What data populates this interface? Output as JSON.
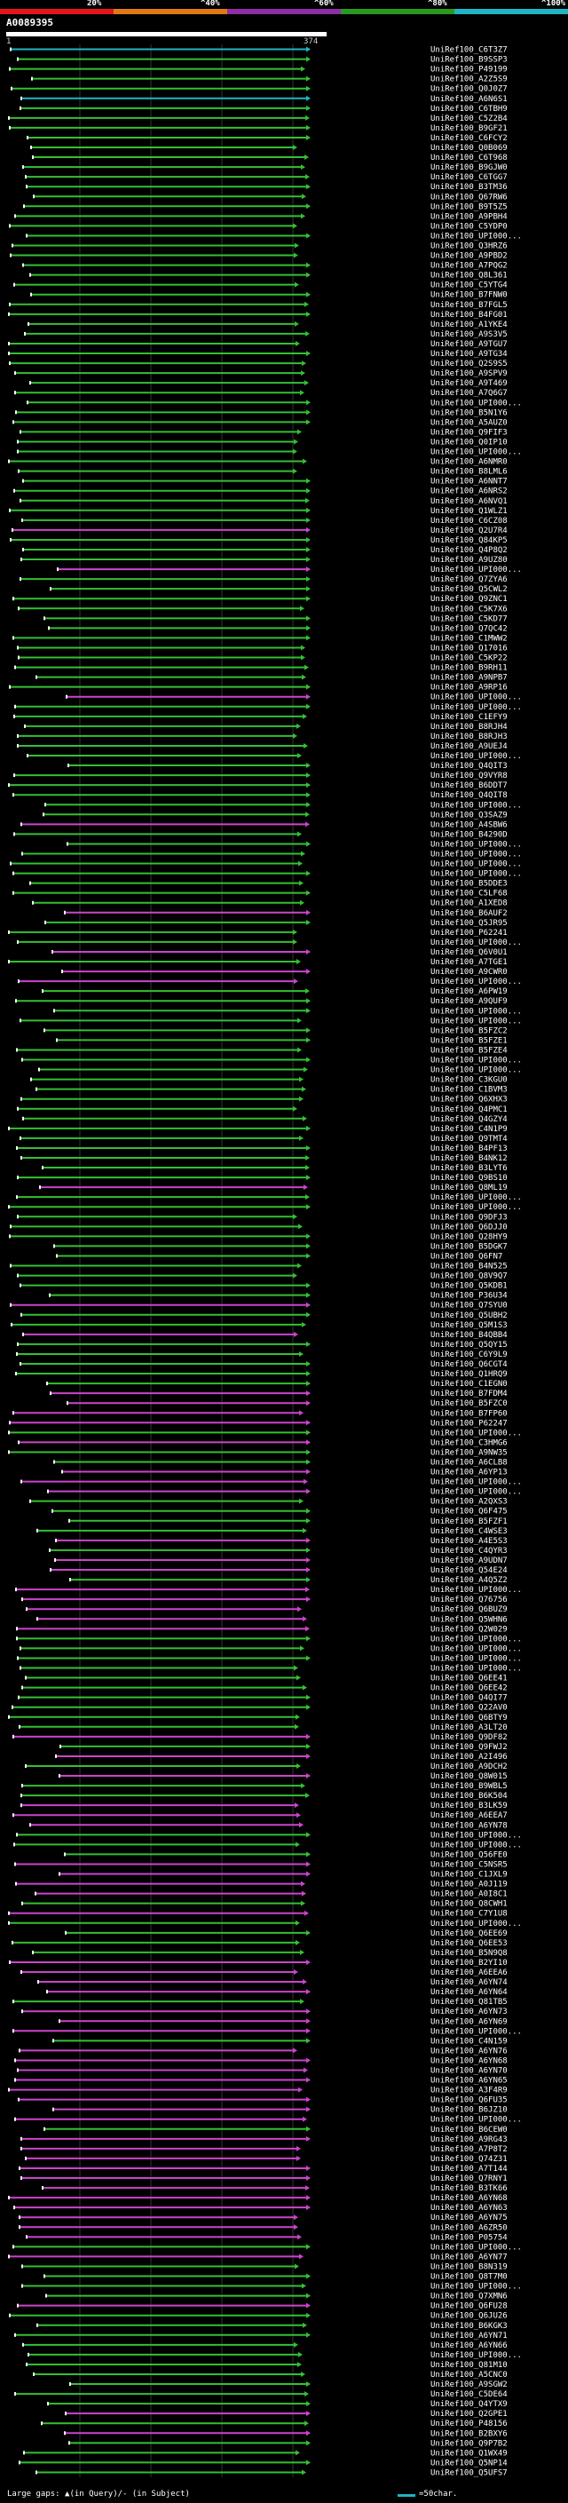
{
  "legend": {
    "segments": [
      {
        "label": "20%",
        "color": "#e8141d"
      },
      {
        "label": "^40%",
        "color": "#e07b14"
      },
      {
        "label": "^60%",
        "color": "#8e2fa6"
      },
      {
        "label": "^80%",
        "color": "#2a9a1e"
      },
      {
        "label": "^100%",
        "color": "#1fb5c4"
      }
    ]
  },
  "query": {
    "id": "A0089395",
    "start": "1",
    "end": "374"
  },
  "colors": {
    "green": "#33c033",
    "magenta": "#cc44cc",
    "cyan": "#1fb5c4",
    "frame": "#ffffff"
  },
  "hits": [
    {
      "label": "UniRef100_C6T3Z7",
      "color": "cyan"
    },
    {
      "label": "UniRef100_B9SSP3",
      "color": "green"
    },
    {
      "label": "UniRef100_P49199",
      "color": "green"
    },
    {
      "label": "UniRef100_A2Z5S9",
      "color": "green"
    },
    {
      "label": "UniRef100_Q0J0Z7",
      "color": "green"
    },
    {
      "label": "UniRef100_A6N6S1",
      "color": "cyan"
    },
    {
      "label": "UniRef100_C6TBH9",
      "color": "green"
    },
    {
      "label": "UniRef100_C5Z2B4",
      "color": "green"
    },
    {
      "label": "UniRef100_B9GF21",
      "color": "green"
    },
    {
      "label": "UniRef100_C6FCY2",
      "color": "green"
    },
    {
      "label": "UniRef100_Q0B069",
      "color": "green"
    },
    {
      "label": "UniRef100_C6T968",
      "color": "green"
    },
    {
      "label": "UniRef100_B9GJW0",
      "color": "green"
    },
    {
      "label": "UniRef100_C6TGG7",
      "color": "green"
    },
    {
      "label": "UniRef100_B3TM36",
      "color": "green"
    },
    {
      "label": "UniRef100_Q67RW6",
      "color": "green"
    },
    {
      "label": "UniRef100_B9T5Z5",
      "color": "green"
    },
    {
      "label": "UniRef100_A9PBH4",
      "color": "green"
    },
    {
      "label": "UniRef100_C5YDP0",
      "color": "green"
    },
    {
      "label": "UniRef100_UPI000...",
      "color": "green"
    },
    {
      "label": "UniRef100_Q3HRZ6",
      "color": "green"
    },
    {
      "label": "UniRef100_A9PBD2",
      "color": "green"
    },
    {
      "label": "UniRef100_A7PQG2",
      "color": "green"
    },
    {
      "label": "UniRef100_Q8L361",
      "color": "green"
    },
    {
      "label": "UniRef100_C5YTG4",
      "color": "green"
    },
    {
      "label": "UniRef100_B7FNW0",
      "color": "green"
    },
    {
      "label": "UniRef100_B7FGL5",
      "color": "green"
    },
    {
      "label": "UniRef100_B4FG01",
      "color": "green"
    },
    {
      "label": "UniRef100_A1YKE4",
      "color": "green"
    },
    {
      "label": "UniRef100_A9S3V5",
      "color": "green"
    },
    {
      "label": "UniRef100_A9TGU7",
      "color": "green"
    },
    {
      "label": "UniRef100_A9TG34",
      "color": "green"
    },
    {
      "label": "UniRef100_Q2S9S5",
      "color": "green"
    },
    {
      "label": "UniRef100_A9SPV9",
      "color": "green"
    },
    {
      "label": "UniRef100_A9T469",
      "color": "green"
    },
    {
      "label": "UniRef100_A7Q6G7",
      "color": "green"
    },
    {
      "label": "UniRef100_UPI000...",
      "color": "green"
    },
    {
      "label": "UniRef100_B5N1Y6",
      "color": "green"
    },
    {
      "label": "UniRef100_A5AUZ0",
      "color": "green"
    },
    {
      "label": "UniRef100_Q9FIF3",
      "color": "green"
    },
    {
      "label": "UniRef100_Q0IP10",
      "color": "green"
    },
    {
      "label": "UniRef100_UPI000...",
      "color": "green"
    },
    {
      "label": "UniRef100_A6NMR0",
      "color": "green"
    },
    {
      "label": "UniRef100_B8LML6",
      "color": "green"
    },
    {
      "label": "UniRef100_A6NNT7",
      "color": "green"
    },
    {
      "label": "UniRef100_A6NRS2",
      "color": "green"
    },
    {
      "label": "UniRef100_A6NVQ1",
      "color": "green"
    },
    {
      "label": "UniRef100_Q1WLZ1",
      "color": "green"
    },
    {
      "label": "UniRef100_C6CZ08",
      "color": "green"
    },
    {
      "label": "UniRef100_Q2U7R4",
      "color": "magenta"
    },
    {
      "label": "UniRef100_Q84KP5",
      "color": "green"
    },
    {
      "label": "UniRef100_Q4P8Q2",
      "color": "green"
    },
    {
      "label": "UniRef100_A9UZ80",
      "color": "green"
    },
    {
      "label": "UniRef100_UPI000...",
      "color": "magenta"
    },
    {
      "label": "UniRef100_Q7ZYA6",
      "color": "green"
    },
    {
      "label": "UniRef100_Q5CWL2",
      "color": "green"
    },
    {
      "label": "UniRef100_Q9ZNC1",
      "color": "green"
    },
    {
      "label": "UniRef100_C5K7X6",
      "color": "green"
    },
    {
      "label": "UniRef100_C5KD77",
      "color": "green"
    },
    {
      "label": "UniRef100_Q7QC42",
      "color": "green"
    },
    {
      "label": "UniRef100_C1MWW2",
      "color": "green"
    },
    {
      "label": "UniRef100_Q17016",
      "color": "green"
    },
    {
      "label": "UniRef100_C5KP22",
      "color": "green"
    },
    {
      "label": "UniRef100_B9RH11",
      "color": "green"
    },
    {
      "label": "UniRef100_A9NPB7",
      "color": "green"
    },
    {
      "label": "UniRef100_A9RP16",
      "color": "green"
    },
    {
      "label": "UniRef100_UPI000...",
      "color": "magenta"
    },
    {
      "label": "UniRef100_UPI000...",
      "color": "green"
    },
    {
      "label": "UniRef100_C1EFY9",
      "color": "green"
    },
    {
      "label": "UniRef100_B8RJH4",
      "color": "green"
    },
    {
      "label": "UniRef100_B8RJH3",
      "color": "green"
    },
    {
      "label": "UniRef100_A9UEJ4",
      "color": "green"
    },
    {
      "label": "UniRef100_UPI000...",
      "color": "green"
    },
    {
      "label": "UniRef100_Q4QIT3",
      "color": "green"
    },
    {
      "label": "UniRef100_Q9VYR8",
      "color": "green"
    },
    {
      "label": "UniRef100_B6DDT7",
      "color": "green"
    },
    {
      "label": "UniRef100_Q4QIT8",
      "color": "green"
    },
    {
      "label": "UniRef100_UPI000...",
      "color": "green"
    },
    {
      "label": "UniRef100_Q3SAZ9",
      "color": "green"
    },
    {
      "label": "UniRef100_A4SBW6",
      "color": "magenta"
    },
    {
      "label": "UniRef100_B4290D",
      "color": "green"
    },
    {
      "label": "UniRef100_UPI000...",
      "color": "green"
    },
    {
      "label": "UniRef100_UPI000...",
      "color": "green"
    },
    {
      "label": "UniRef100_UPI000...",
      "color": "green"
    },
    {
      "label": "UniRef100_UPI000...",
      "color": "green"
    },
    {
      "label": "UniRef100_B5DDE3",
      "color": "green"
    },
    {
      "label": "UniRef100_C5LF68",
      "color": "green"
    },
    {
      "label": "UniRef100_A1XED8",
      "color": "green"
    },
    {
      "label": "UniRef100_B6AUF2",
      "color": "magenta"
    },
    {
      "label": "UniRef100_Q5JR95",
      "color": "green"
    },
    {
      "label": "UniRef100_P62241",
      "color": "green"
    },
    {
      "label": "UniRef100_UPI000...",
      "color": "green"
    },
    {
      "label": "UniRef100_Q6V0U1",
      "color": "magenta"
    },
    {
      "label": "UniRef100_A7TGE1",
      "color": "green"
    },
    {
      "label": "UniRef100_A9CWR0",
      "color": "magenta"
    },
    {
      "label": "UniRef100_UPI000...",
      "color": "magenta"
    },
    {
      "label": "UniRef100_A6PW19",
      "color": "green"
    },
    {
      "label": "UniRef100_A9QUF9",
      "color": "green"
    },
    {
      "label": "UniRef100_UPI000...",
      "color": "green"
    },
    {
      "label": "UniRef100_UPI000...",
      "color": "green"
    },
    {
      "label": "UniRef100_B5FZC2",
      "color": "green"
    },
    {
      "label": "UniRef100_B5FZE1",
      "color": "green"
    },
    {
      "label": "UniRef100_B5FZE4",
      "color": "green"
    },
    {
      "label": "UniRef100_UPI000...",
      "color": "green"
    },
    {
      "label": "UniRef100_UPI000...",
      "color": "green"
    },
    {
      "label": "UniRef100_C3KGU0",
      "color": "green"
    },
    {
      "label": "UniRef100_C1BVM3",
      "color": "green"
    },
    {
      "label": "UniRef100_Q6XHX3",
      "color": "green"
    },
    {
      "label": "UniRef100_Q4PMC1",
      "color": "green"
    },
    {
      "label": "UniRef100_Q4GZY4",
      "color": "green"
    },
    {
      "label": "UniRef100_C4N1P9",
      "color": "green"
    },
    {
      "label": "UniRef100_Q9TMT4",
      "color": "green"
    },
    {
      "label": "UniRef100_B4PF13",
      "color": "green"
    },
    {
      "label": "UniRef100_B4NK12",
      "color": "green"
    },
    {
      "label": "UniRef100_B3LYT6",
      "color": "green"
    },
    {
      "label": "UniRef100_Q9BS10",
      "color": "green"
    },
    {
      "label": "UniRef100_Q8ML19",
      "color": "magenta"
    },
    {
      "label": "UniRef100_UPI000...",
      "color": "green"
    },
    {
      "label": "UniRef100_UPI000...",
      "color": "green"
    },
    {
      "label": "UniRef100_Q9DFJ3",
      "color": "green"
    },
    {
      "label": "UniRef100_Q6DJJ0",
      "color": "green"
    },
    {
      "label": "UniRef100_Q28HY9",
      "color": "green"
    },
    {
      "label": "UniRef100_B5DGK7",
      "color": "green"
    },
    {
      "label": "UniRef100_Q6FN7",
      "color": "green"
    },
    {
      "label": "UniRef100_B4N525",
      "color": "green"
    },
    {
      "label": "UniRef100_Q8V9Q7",
      "color": "green"
    },
    {
      "label": "UniRef100_Q5KDB1",
      "color": "green"
    },
    {
      "label": "UniRef100_P36U34",
      "color": "green"
    },
    {
      "label": "UniRef100_Q7SYU0",
      "color": "magenta"
    },
    {
      "label": "UniRef100_Q5UBH2",
      "color": "green"
    },
    {
      "label": "UniRef100_Q5M1S3",
      "color": "green"
    },
    {
      "label": "UniRef100_B4QBB4",
      "color": "magenta"
    },
    {
      "label": "UniRef100_Q5QY15",
      "color": "green"
    },
    {
      "label": "UniRef100_C6Y9L9",
      "color": "green"
    },
    {
      "label": "UniRef100_Q6CGT4",
      "color": "green"
    },
    {
      "label": "UniRef100_Q1HRQ9",
      "color": "green"
    },
    {
      "label": "UniRef100_C1EGN0",
      "color": "green"
    },
    {
      "label": "UniRef100_B7FDM4",
      "color": "magenta"
    },
    {
      "label": "UniRef100_B5FZC0",
      "color": "magenta"
    },
    {
      "label": "UniRef100_B7FP60",
      "color": "magenta"
    },
    {
      "label": "UniRef100_P62247",
      "color": "magenta"
    },
    {
      "label": "UniRef100_UPI000...",
      "color": "green"
    },
    {
      "label": "UniRef100_C3HMG6",
      "color": "magenta"
    },
    {
      "label": "UniRef100_A9NW35",
      "color": "green"
    },
    {
      "label": "UniRef100_A6CLB8",
      "color": "green"
    },
    {
      "label": "UniRef100_A6YP13",
      "color": "magenta"
    },
    {
      "label": "UniRef100_UPI000...",
      "color": "magenta"
    },
    {
      "label": "UniRef100_UPI000...",
      "color": "magenta"
    },
    {
      "label": "UniRef100_A2QXS3",
      "color": "green"
    },
    {
      "label": "UniRef100_Q6F475",
      "color": "green"
    },
    {
      "label": "UniRef100_B5FZF1",
      "color": "green"
    },
    {
      "label": "UniRef100_C4WSE3",
      "color": "green"
    },
    {
      "label": "UniRef100_A4E5S3",
      "color": "magenta"
    },
    {
      "label": "UniRef100_C4QYR3",
      "color": "green"
    },
    {
      "label": "UniRef100_A9UDN7",
      "color": "magenta"
    },
    {
      "label": "UniRef100_Q54E24",
      "color": "magenta"
    },
    {
      "label": "UniRef100_A4Q5Z2",
      "color": "green"
    },
    {
      "label": "UniRef100_UPI000...",
      "color": "magenta"
    },
    {
      "label": "UniRef100_Q76756",
      "color": "magenta"
    },
    {
      "label": "UniRef100_Q6BUZ9",
      "color": "magenta"
    },
    {
      "label": "UniRef100_Q5WHN6",
      "color": "magenta"
    },
    {
      "label": "UniRef100_Q2W029",
      "color": "magenta"
    },
    {
      "label": "UniRef100_UPI000...",
      "color": "green"
    },
    {
      "label": "UniRef100_UPI000...",
      "color": "green"
    },
    {
      "label": "UniRef100_UPI000...",
      "color": "green"
    },
    {
      "label": "UniRef100_UPI000...",
      "color": "green"
    },
    {
      "label": "UniRef100_Q6EE41",
      "color": "green"
    },
    {
      "label": "UniRef100_Q6EE42",
      "color": "green"
    },
    {
      "label": "UniRef100_Q4QI77",
      "color": "green"
    },
    {
      "label": "UniRef100_Q22AV0",
      "color": "green"
    },
    {
      "label": "UniRef100_Q6BTY9",
      "color": "green"
    },
    {
      "label": "UniRef100_A3LT20",
      "color": "green"
    },
    {
      "label": "UniRef100_Q9DF82",
      "color": "magenta"
    },
    {
      "label": "UniRef100_Q9FWJ2",
      "color": "green"
    },
    {
      "label": "UniRef100_A2I496",
      "color": "magenta"
    },
    {
      "label": "UniRef100_A9DCH2",
      "color": "green"
    },
    {
      "label": "UniRef100_Q8W015",
      "color": "magenta"
    },
    {
      "label": "UniRef100_B9WBL5",
      "color": "green"
    },
    {
      "label": "UniRef100_B6K504",
      "color": "green"
    },
    {
      "label": "UniRef100_B3LK59",
      "color": "magenta"
    },
    {
      "label": "UniRef100_A6EEA7",
      "color": "magenta"
    },
    {
      "label": "UniRef100_A6YN78",
      "color": "magenta"
    },
    {
      "label": "UniRef100_UPI000...",
      "color": "green"
    },
    {
      "label": "UniRef100_UPI000...",
      "color": "green"
    },
    {
      "label": "UniRef100_Q56FE0",
      "color": "green"
    },
    {
      "label": "UniRef100_C5NSR5",
      "color": "magenta"
    },
    {
      "label": "UniRef100_C1JXL9",
      "color": "magenta"
    },
    {
      "label": "UniRef100_A0J119",
      "color": "magenta"
    },
    {
      "label": "UniRef100_A0I8C1",
      "color": "magenta"
    },
    {
      "label": "UniRef100_Q8CWH1",
      "color": "green"
    },
    {
      "label": "UniRef100_C7Y1U8",
      "color": "magenta"
    },
    {
      "label": "UniRef100_UPI000...",
      "color": "green"
    },
    {
      "label": "UniRef100_Q6EE69",
      "color": "green"
    },
    {
      "label": "UniRef100_Q6EE53",
      "color": "green"
    },
    {
      "label": "UniRef100_B5N9Q8",
      "color": "green"
    },
    {
      "label": "UniRef100_B2YI10",
      "color": "magenta"
    },
    {
      "label": "UniRef100_A6EEA6",
      "color": "magenta"
    },
    {
      "label": "UniRef100_A6YN74",
      "color": "magenta"
    },
    {
      "label": "UniRef100_A6YN64",
      "color": "magenta"
    },
    {
      "label": "UniRef100_Q81TB5",
      "color": "green"
    },
    {
      "label": "UniRef100_A6YN73",
      "color": "magenta"
    },
    {
      "label": "UniRef100_A6YN69",
      "color": "magenta"
    },
    {
      "label": "UniRef100_UPI000...",
      "color": "magenta"
    },
    {
      "label": "UniRef100_C4N159",
      "color": "green"
    },
    {
      "label": "UniRef100_A6YN76",
      "color": "magenta"
    },
    {
      "label": "UniRef100_A6YN68",
      "color": "magenta"
    },
    {
      "label": "UniRef100_A6YN70",
      "color": "magenta"
    },
    {
      "label": "UniRef100_A6YN65",
      "color": "magenta"
    },
    {
      "label": "UniRef100_A3F4R9",
      "color": "magenta"
    },
    {
      "label": "UniRef100_Q6FU35",
      "color": "magenta"
    },
    {
      "label": "UniRef100_B6JZ10",
      "color": "magenta"
    },
    {
      "label": "UniRef100_UPI000...",
      "color": "magenta"
    },
    {
      "label": "UniRef100_B6CEW0",
      "color": "green"
    },
    {
      "label": "UniRef100_A9RG43",
      "color": "magenta"
    },
    {
      "label": "UniRef100_A7P8T2",
      "color": "magenta"
    },
    {
      "label": "UniRef100_Q74Z31",
      "color": "magenta"
    },
    {
      "label": "UniRef100_A7T144",
      "color": "magenta"
    },
    {
      "label": "UniRef100_Q7RNY1",
      "color": "magenta"
    },
    {
      "label": "UniRef100_B3TK66",
      "color": "magenta"
    },
    {
      "label": "UniRef100_A6YN68",
      "color": "magenta"
    },
    {
      "label": "UniRef100_A6YN63",
      "color": "magenta"
    },
    {
      "label": "UniRef100_A6YN75",
      "color": "magenta"
    },
    {
      "label": "UniRef100_A6ZR50",
      "color": "magenta"
    },
    {
      "label": "UniRef100_P05754",
      "color": "magenta"
    },
    {
      "label": "UniRef100_UPI000...",
      "color": "green"
    },
    {
      "label": "UniRef100_A6YN77",
      "color": "magenta"
    },
    {
      "label": "UniRef100_B8N319",
      "color": "green"
    },
    {
      "label": "UniRef100_Q8T7M0",
      "color": "green"
    },
    {
      "label": "UniRef100_UPI000...",
      "color": "green"
    },
    {
      "label": "UniRef100_Q7XMN6",
      "color": "green"
    },
    {
      "label": "UniRef100_Q6FU28",
      "color": "magenta"
    },
    {
      "label": "UniRef100_Q6JU26",
      "color": "green"
    },
    {
      "label": "UniRef100_B6KGK3",
      "color": "green"
    },
    {
      "label": "UniRef100_A6YN71",
      "color": "green"
    },
    {
      "label": "UniRef100_A6YN66",
      "color": "green"
    },
    {
      "label": "UniRef100_UPI000...",
      "color": "green"
    },
    {
      "label": "UniRef100_Q81M10",
      "color": "green"
    },
    {
      "label": "UniRef100_A5CNC0",
      "color": "green"
    },
    {
      "label": "UniRef100_A9SGW2",
      "color": "green"
    },
    {
      "label": "UniRef100_C5DE64",
      "color": "green"
    },
    {
      "label": "UniRef100_Q4YTX9",
      "color": "green"
    },
    {
      "label": "UniRef100_Q2GPE1",
      "color": "magenta"
    },
    {
      "label": "UniRef100_P48156",
      "color": "green"
    },
    {
      "label": "UniRef100_B2BXY6",
      "color": "magenta"
    },
    {
      "label": "UniRef100_Q9P7B2",
      "color": "green"
    },
    {
      "label": "UniRef100_Q1WX49",
      "color": "green"
    },
    {
      "label": "UniRef100_Q5NP14",
      "color": "green"
    },
    {
      "label": "UniRef100_Q5UFS7",
      "color": "green"
    }
  ],
  "footer": {
    "gaps_note": "Large gaps: ▲(in Query)/- (in Subject)",
    "scale_label": "=50char."
  }
}
